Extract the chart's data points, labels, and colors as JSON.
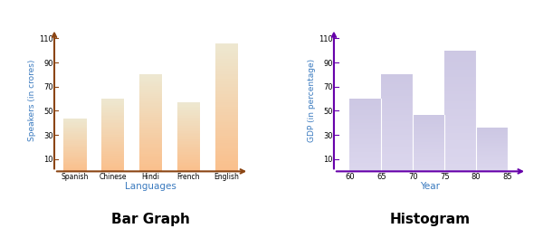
{
  "bar_categories": [
    "Spanish",
    "Chinese",
    "Hindi",
    "French",
    "English"
  ],
  "bar_values": [
    44,
    60,
    80,
    57,
    106
  ],
  "bar_color_light": "#fde8d0",
  "bar_color_dark": "#f5b07a",
  "bar_axis_color": "#8B4513",
  "bar_xlabel": "Languages",
  "bar_ylabel": "Speakers (in crores)",
  "bar_yticks": [
    10,
    30,
    50,
    70,
    90,
    110
  ],
  "bar_title": "Bar Graph",
  "hist_values": [
    60,
    80,
    47,
    100,
    36
  ],
  "hist_bins": [
    60,
    65,
    70,
    75,
    80,
    85
  ],
  "hist_color_light": "#dddaee",
  "hist_color_dark": "#b8b0d8",
  "hist_axis_color": "#6600aa",
  "hist_xlabel": "Year",
  "hist_ylabel": "GDP (in percentage)",
  "hist_yticks": [
    10,
    30,
    50,
    70,
    90,
    110
  ],
  "hist_xticks": [
    60,
    65,
    70,
    75,
    80,
    85
  ],
  "hist_title": "Histogram",
  "label_color": "#3a7abf",
  "title_color": "#000000",
  "bg_color": "#ffffff"
}
